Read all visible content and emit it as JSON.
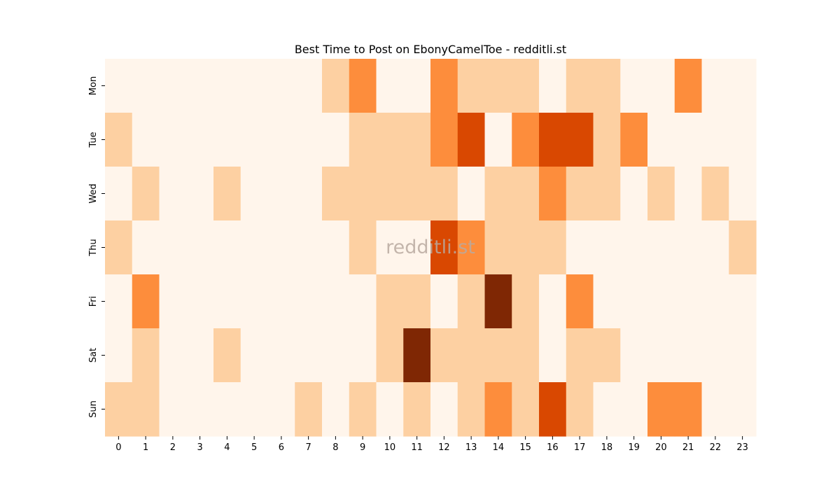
{
  "chart_data": {
    "type": "heatmap",
    "title": "Best Time to Post on EbonyCamelToe - redditli.st",
    "watermark": "redditli.st",
    "x": [
      "0",
      "1",
      "2",
      "3",
      "4",
      "5",
      "6",
      "7",
      "8",
      "9",
      "10",
      "11",
      "12",
      "13",
      "14",
      "15",
      "16",
      "17",
      "18",
      "19",
      "20",
      "21",
      "22",
      "23"
    ],
    "y": [
      "Mon",
      "Tue",
      "Wed",
      "Thu",
      "Fri",
      "Sat",
      "Sun"
    ],
    "values": [
      [
        0,
        0,
        0,
        0,
        0,
        0,
        0,
        0,
        1,
        2,
        0,
        0,
        2,
        1,
        1,
        1,
        0,
        1,
        1,
        0,
        0,
        2,
        0,
        0
      ],
      [
        1,
        0,
        0,
        0,
        0,
        0,
        0,
        0,
        0,
        1,
        1,
        1,
        2,
        3,
        0,
        2,
        3,
        3,
        1,
        2,
        0,
        0,
        0,
        0
      ],
      [
        0,
        1,
        0,
        0,
        1,
        0,
        0,
        0,
        1,
        1,
        1,
        1,
        1,
        0,
        1,
        1,
        2,
        1,
        1,
        0,
        1,
        0,
        1,
        0
      ],
      [
        1,
        0,
        0,
        0,
        0,
        0,
        0,
        0,
        0,
        1,
        0,
        0,
        3,
        2,
        1,
        1,
        1,
        0,
        0,
        0,
        0,
        0,
        0,
        1
      ],
      [
        0,
        2,
        0,
        0,
        0,
        0,
        0,
        0,
        0,
        0,
        1,
        1,
        0,
        1,
        4,
        1,
        0,
        2,
        0,
        0,
        0,
        0,
        0,
        0
      ],
      [
        0,
        1,
        0,
        0,
        1,
        0,
        0,
        0,
        0,
        0,
        1,
        4,
        1,
        1,
        1,
        1,
        0,
        1,
        1,
        0,
        0,
        0,
        0,
        0
      ],
      [
        1,
        1,
        0,
        0,
        0,
        0,
        0,
        1,
        0,
        1,
        0,
        1,
        0,
        1,
        2,
        1,
        3,
        1,
        0,
        0,
        2,
        2,
        0,
        0
      ]
    ],
    "vmin": 0,
    "vmax": 4,
    "colormap": "Oranges",
    "colors": [
      "#fff5eb",
      "#fdd0a2",
      "#fd8d3c",
      "#d94801",
      "#7f2704"
    ],
    "grid": false,
    "legend": "none"
  }
}
